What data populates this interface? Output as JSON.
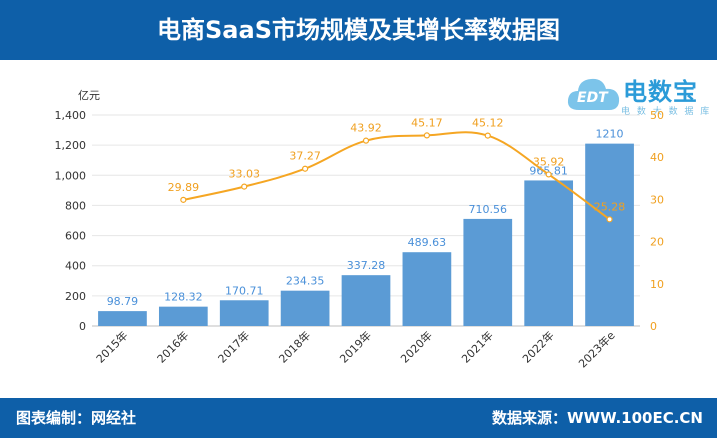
{
  "header": {
    "title": "电商SaaS市场规模及其增长率数据图"
  },
  "footer": {
    "left_text": "图表编制：网经社",
    "right_text": "数据来源：WWW.100EC.CN"
  },
  "logo": {
    "main_text": "电数宝",
    "sub_text": "电 数 大 数 据 库",
    "badge_text": "EDT"
  },
  "colors": {
    "header": "#0e5fa8",
    "bar": "#5b9bd5",
    "line": "#f5a623",
    "bar_label": "#4a90d9"
  },
  "chart_data": {
    "type": "bar",
    "title": "电商SaaS市场规模及其增长率数据图",
    "categories": [
      "2015年",
      "2016年",
      "2017年",
      "2018年",
      "2019年",
      "2020年",
      "2021年",
      "2022年",
      "2023年e"
    ],
    "left_unit": "亿元",
    "ylim": [
      0,
      1400
    ],
    "y_ticks": [
      "0",
      "200",
      "400",
      "600",
      "800",
      "1,000",
      "1,200",
      "1,400"
    ],
    "y2lim": [
      0,
      50
    ],
    "y2_ticks": [
      "0",
      "10",
      "20",
      "30",
      "40",
      "50"
    ],
    "series": [
      {
        "type": "bar",
        "axis": "left",
        "values": [
          98.79,
          128.32,
          170.71,
          234.35,
          337.28,
          489.63,
          710.56,
          965.81,
          1210
        ],
        "labels": [
          "98.79",
          "128.32",
          "170.71",
          "234.35",
          "337.28",
          "489.63",
          "710.56",
          "965.81",
          "1210"
        ]
      },
      {
        "type": "line",
        "axis": "right",
        "values": [
          null,
          29.89,
          33.03,
          37.27,
          43.92,
          45.17,
          45.12,
          35.92,
          25.28
        ],
        "labels": [
          "",
          "29.89",
          "33.03",
          "37.27",
          "43.92",
          "45.17",
          "45.12",
          "35.92",
          "25.28"
        ]
      }
    ],
    "grid": true
  }
}
